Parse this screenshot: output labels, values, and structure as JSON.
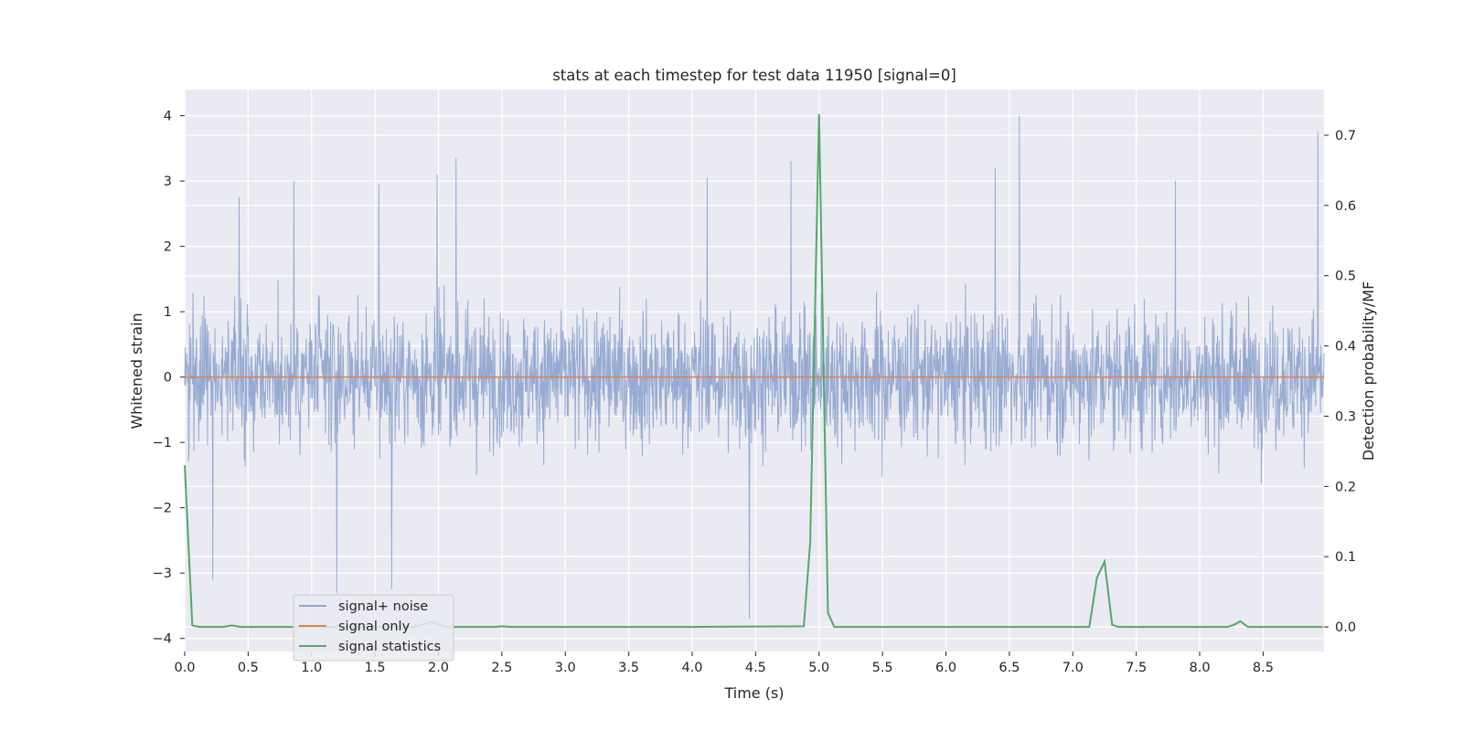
{
  "chart_data": {
    "type": "line",
    "title": "stats at each timestep for test data 11950 [signal=0]",
    "xlabel": "Time (s)",
    "ylabel_left": "Whitened strain",
    "ylabel_right": "Detection probability/MF",
    "xlim": [
      0.0,
      8.98
    ],
    "ylim_left": [
      -4.2,
      4.4
    ],
    "ylim_right": [
      -0.035,
      0.765
    ],
    "x_ticks": [
      "0.0",
      "0.5",
      "1.0",
      "1.5",
      "2.0",
      "2.5",
      "3.0",
      "3.5",
      "4.0",
      "4.5",
      "5.0",
      "5.5",
      "6.0",
      "6.5",
      "7.0",
      "7.5",
      "8.0",
      "8.5"
    ],
    "y_ticks_left": [
      "4",
      "3",
      "2",
      "1",
      "0",
      "−1",
      "−2",
      "−3",
      "−4"
    ],
    "y_ticks_right": [
      "0.7",
      "0.6",
      "0.5",
      "0.4",
      "0.3",
      "0.2",
      "0.1",
      "0.0"
    ],
    "grid": true,
    "legend_position": "lower-left",
    "series": [
      {
        "name": "signal+ noise",
        "axis": "left",
        "color": "#8fa5cf",
        "style": "dense noise trace, approx. ±1.5 body with peaks to 4.0 and -3.7",
        "peaks": [
          {
            "x": 0.22,
            "y": -3.1
          },
          {
            "x": 0.43,
            "y": 2.75
          },
          {
            "x": 0.86,
            "y": 3.0
          },
          {
            "x": 1.2,
            "y": -3.3
          },
          {
            "x": 1.53,
            "y": 2.95
          },
          {
            "x": 1.63,
            "y": -3.25
          },
          {
            "x": 1.99,
            "y": 3.1
          },
          {
            "x": 2.14,
            "y": 3.35
          },
          {
            "x": 4.12,
            "y": 3.05
          },
          {
            "x": 4.45,
            "y": -3.7
          },
          {
            "x": 4.78,
            "y": 3.3
          },
          {
            "x": 6.58,
            "y": 4.0
          },
          {
            "x": 6.39,
            "y": 3.2
          },
          {
            "x": 7.81,
            "y": 3.0
          },
          {
            "x": 8.93,
            "y": 3.75
          }
        ]
      },
      {
        "name": "signal only",
        "axis": "left",
        "color": "#dd8452",
        "x": [
          0.0,
          8.98
        ],
        "y": [
          0.0,
          0.0
        ]
      },
      {
        "name": "signal statistics",
        "axis": "right",
        "color": "#55a868",
        "x": [
          0.0,
          0.06,
          0.12,
          0.3,
          0.37,
          0.45,
          0.5,
          1.8,
          1.95,
          2.05,
          2.45,
          2.5,
          2.58,
          4.0,
          4.88,
          4.93,
          5.0,
          5.07,
          5.12,
          5.5,
          6.0,
          6.5,
          7.0,
          7.13,
          7.19,
          7.25,
          7.31,
          7.36,
          7.5,
          8.0,
          8.22,
          8.27,
          8.32,
          8.38,
          8.5,
          8.97
        ],
        "y": [
          0.23,
          0.002,
          0.0,
          0.0,
          0.002,
          0.0,
          0.0,
          0.0,
          0.007,
          0.0,
          0.0,
          0.001,
          0.0,
          0.0,
          0.001,
          0.12,
          0.73,
          0.02,
          0.0,
          0.0,
          0.0,
          0.0,
          0.0,
          0.0,
          0.07,
          0.093,
          0.003,
          0.0,
          0.0,
          0.0,
          0.0,
          0.003,
          0.008,
          0.0,
          0.0,
          0.0
        ]
      }
    ]
  }
}
